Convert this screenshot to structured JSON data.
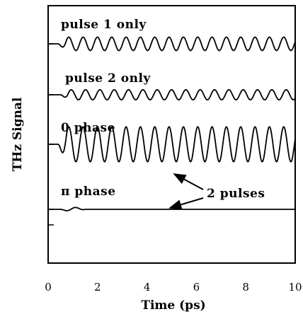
{
  "chart_data": {
    "type": "line",
    "xlabel": "Time  (ps)",
    "ylabel": "THz  Signal",
    "xlim": [
      0,
      10
    ],
    "x_ticks": [
      "0",
      "2",
      "4",
      "6",
      "8",
      "10"
    ],
    "grid": false,
    "legend": "none",
    "series": [
      {
        "name": "pulse  1  only",
        "baseline_time_ps": [
          0,
          0.4
        ],
        "oscillation_start_ps": 0.4,
        "oscillation_period_ps": 0.58,
        "relative_amplitude": 1.0
      },
      {
        "name": "pulse  2  only",
        "baseline_time_ps": [
          0,
          0.5
        ],
        "oscillation_start_ps": 0.5,
        "oscillation_period_ps": 0.58,
        "relative_amplitude": 0.75
      },
      {
        "name": "0  phase",
        "baseline_time_ps": [
          0,
          0.4
        ],
        "oscillation_start_ps": 0.4,
        "oscillation_period_ps": 0.58,
        "relative_amplitude": 2.6
      },
      {
        "name": "π  phase",
        "baseline_time_ps": [
          0,
          10
        ],
        "oscillation_start_ps": 0.5,
        "oscillation_period_ps": 0.58,
        "relative_amplitude": 0.3
      }
    ],
    "annotation": {
      "text": "2  pulses"
    }
  }
}
